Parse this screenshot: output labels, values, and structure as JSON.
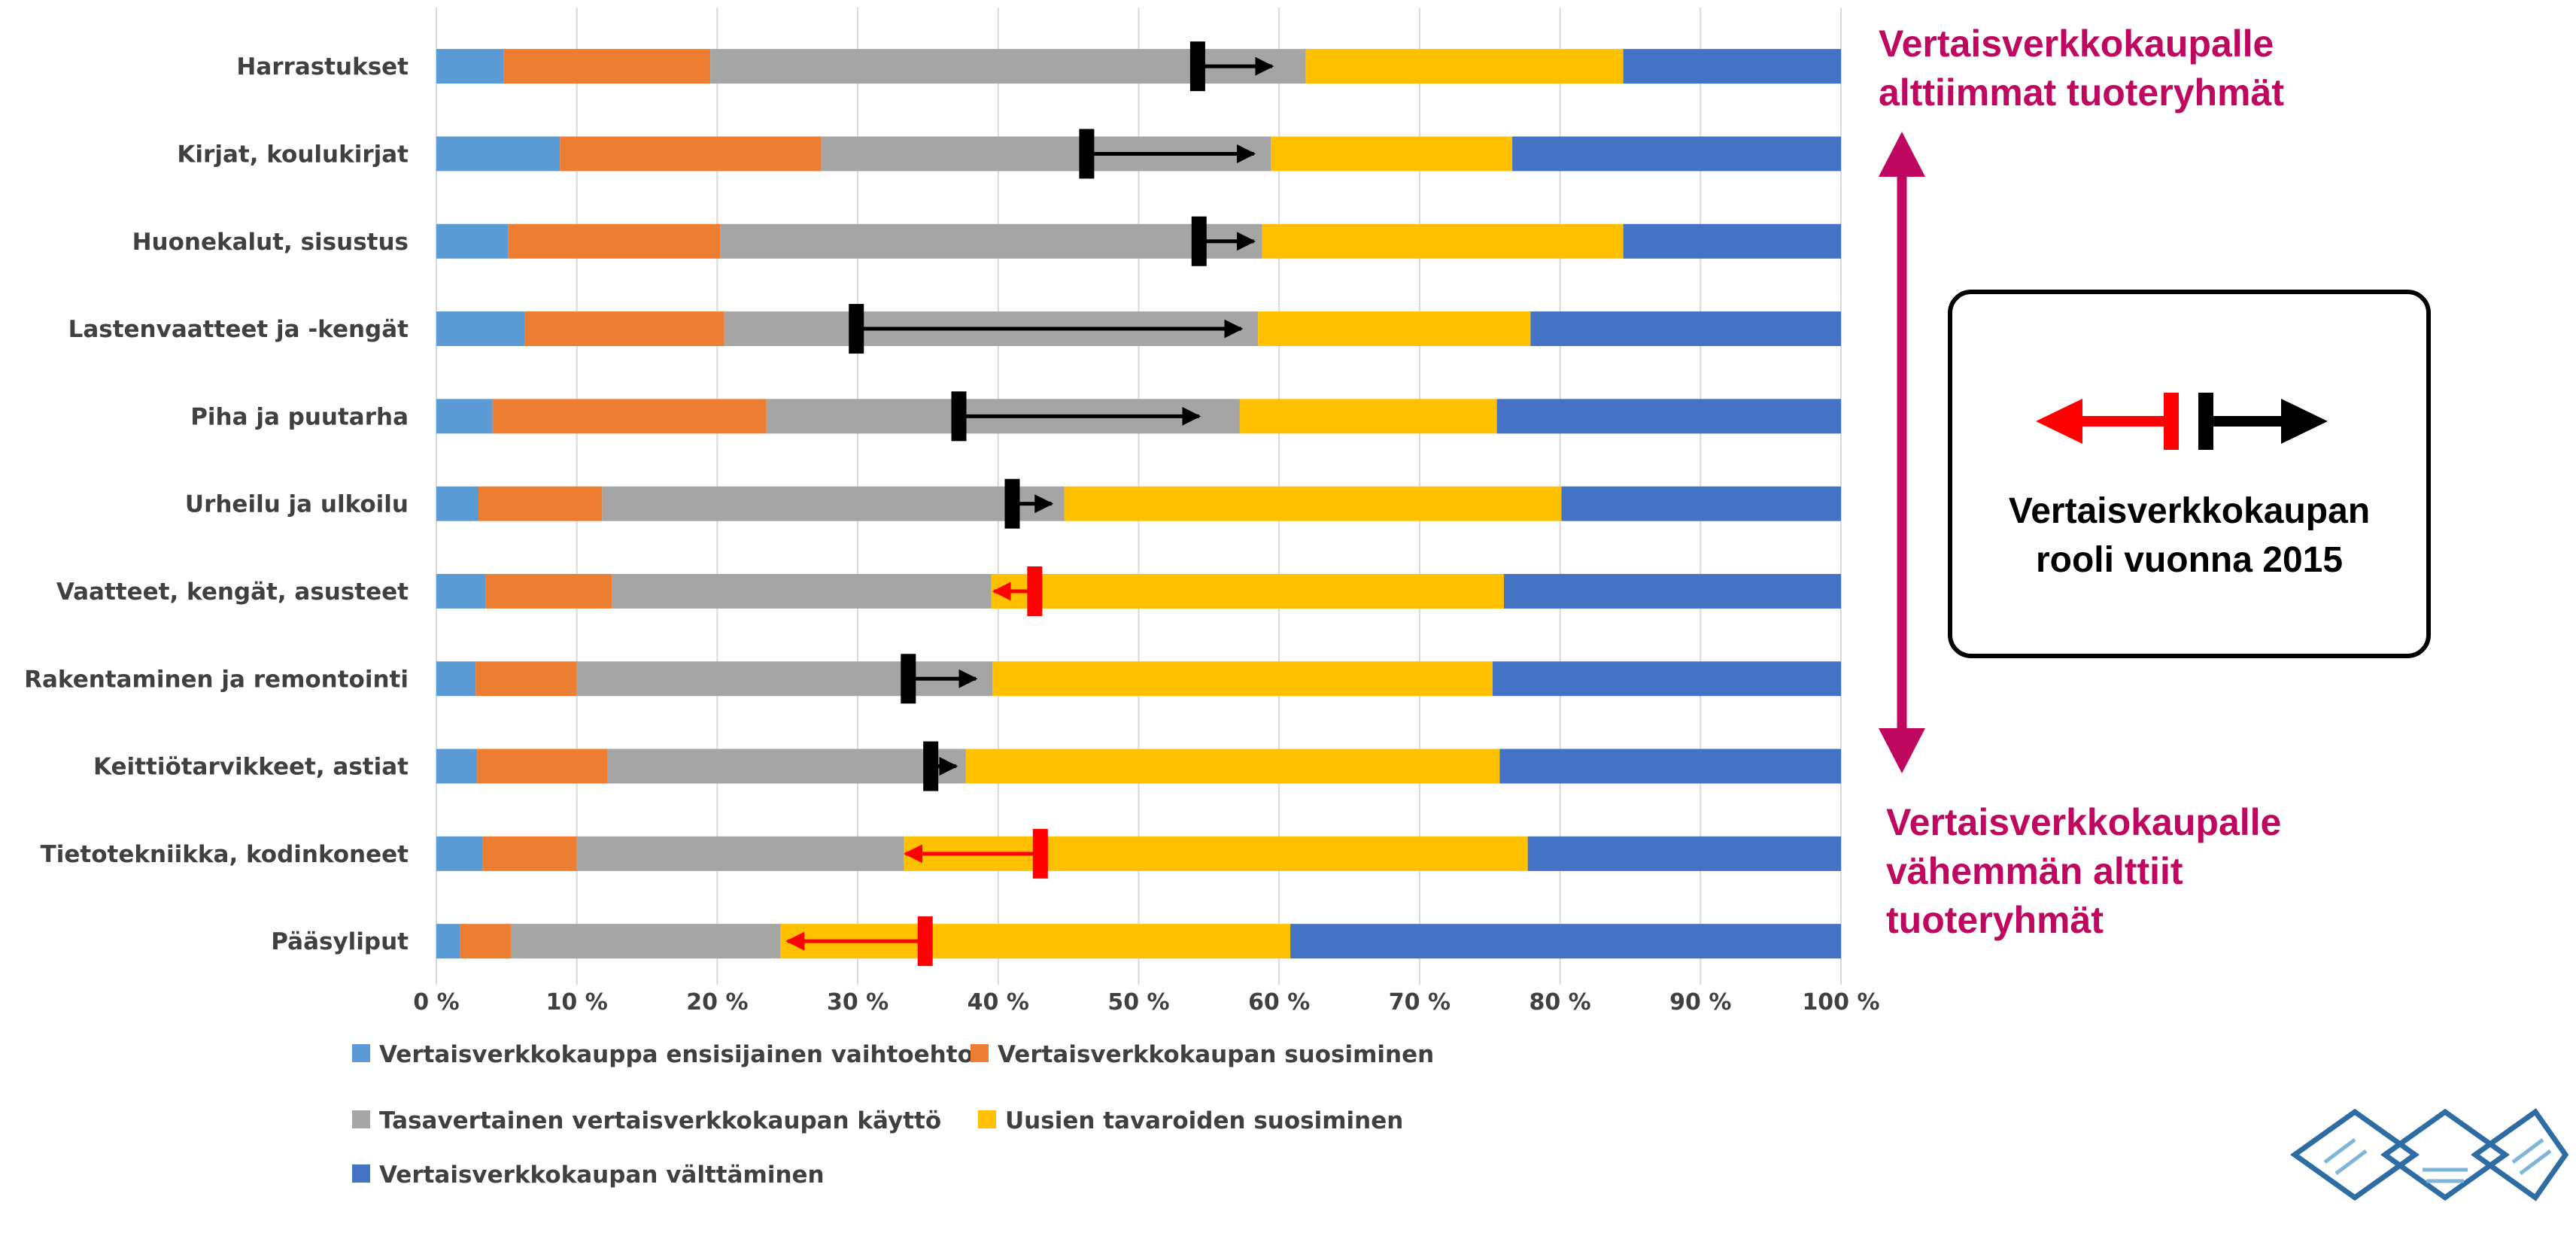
{
  "chart_data": {
    "type": "bar",
    "orientation": "horizontal",
    "stacked": "percent",
    "categories": [
      "Harrastukset",
      "Kirjat, koulukirjat",
      "Huonekalut, sisustus",
      "Lastenvaatteet ja -kengät",
      "Piha ja puutarha",
      "Urheilu ja ulkoilu",
      "Vaatteet, kengät, asusteet",
      "Rakentaminen ja remontointi",
      "Keittiötarvikkeet, astiat",
      "Tietotekniikka, kodinkoneet",
      "Pääsyliput"
    ],
    "series": [
      {
        "name": "Vertaisverkkokauppa ensisijainen vaihtoehto",
        "color": "#5b9bd5",
        "values": [
          4.8,
          8.8,
          5.1,
          6.3,
          4.0,
          3.0,
          3.5,
          2.8,
          2.9,
          3.3,
          1.7
        ]
      },
      {
        "name": "Vertaisverkkokaupan suosiminen",
        "color": "#ed7d31",
        "values": [
          14.7,
          18.6,
          15.1,
          14.2,
          19.5,
          8.8,
          9.0,
          7.2,
          9.3,
          6.7,
          3.6
        ]
      },
      {
        "name": "Tasavertainen vertaisverkkokaupan käyttö",
        "color": "#a5a5a5",
        "values": [
          42.4,
          32.0,
          38.6,
          38.0,
          33.7,
          32.9,
          27.0,
          29.6,
          25.5,
          23.3,
          19.2
        ]
      },
      {
        "name": "Uusien tavaroiden suosiminen",
        "color": "#ffc000",
        "values": [
          22.6,
          17.2,
          25.7,
          19.4,
          18.3,
          35.4,
          36.5,
          35.6,
          38.0,
          44.4,
          36.3
        ]
      },
      {
        "name": "Vertaisverkkokaupan välttäminen",
        "color": "#4472c4",
        "values": [
          15.5,
          23.4,
          15.5,
          22.1,
          24.5,
          19.9,
          24.0,
          24.8,
          24.3,
          22.3,
          39.2
        ]
      }
    ],
    "arrows": [
      {
        "category": "Harrastukset",
        "from": 54.2,
        "to": 59.5,
        "direction": "up"
      },
      {
        "category": "Kirjat, koulukirjat",
        "from": 46.3,
        "to": 58.2,
        "direction": "up"
      },
      {
        "category": "Huonekalut, sisustus",
        "from": 54.3,
        "to": 58.2,
        "direction": "up"
      },
      {
        "category": "Lastenvaatteet ja -kengät",
        "from": 29.9,
        "to": 57.3,
        "direction": "up"
      },
      {
        "category": "Piha ja puutarha",
        "from": 37.2,
        "to": 54.3,
        "direction": "up"
      },
      {
        "category": "Urheilu ja ulkoilu",
        "from": 41.0,
        "to": 43.8,
        "direction": "up"
      },
      {
        "category": "Vaatteet, kengät, asusteet",
        "from": 42.6,
        "to": 39.7,
        "direction": "down"
      },
      {
        "category": "Rakentaminen ja remontointi",
        "from": 33.6,
        "to": 38.4,
        "direction": "up"
      },
      {
        "category": "Keittiötarvikkeet, astiat",
        "from": 35.2,
        "to": 37.0,
        "direction": "up"
      },
      {
        "category": "Tietotekniikka, kodinkoneet",
        "from": 43.0,
        "to": 33.4,
        "direction": "down"
      },
      {
        "category": "Pääsyliput",
        "from": 34.8,
        "to": 25.0,
        "direction": "down"
      }
    ],
    "xticks": [
      "0 %",
      "10 %",
      "20 %",
      "30 %",
      "40 %",
      "50 %",
      "60 %",
      "70 %",
      "80 %",
      "90 %",
      "100 %"
    ],
    "xlim": [
      0,
      100
    ],
    "grid": "vertical",
    "legend_position": "bottom",
    "title": "",
    "xlabel": "",
    "ylabel": ""
  },
  "annotations": {
    "top_label": [
      "Vertaisverkkokaupalle",
      "alttiimmat tuoteryhmät"
    ],
    "bottom_label": [
      "Vertaisverkkokaupalle",
      "vähemmän alttiit",
      "tuoteryhmät"
    ],
    "legend_box_lines": [
      "Vertaisverkkokaupan",
      "rooli vuonna 2015"
    ],
    "accent_color": "#c0075f",
    "up_arrow_color": "#000000",
    "down_arrow_color": "#ff0000"
  },
  "logo": {
    "icon": "diamond-logo-icon",
    "color": "#2e6da4"
  }
}
